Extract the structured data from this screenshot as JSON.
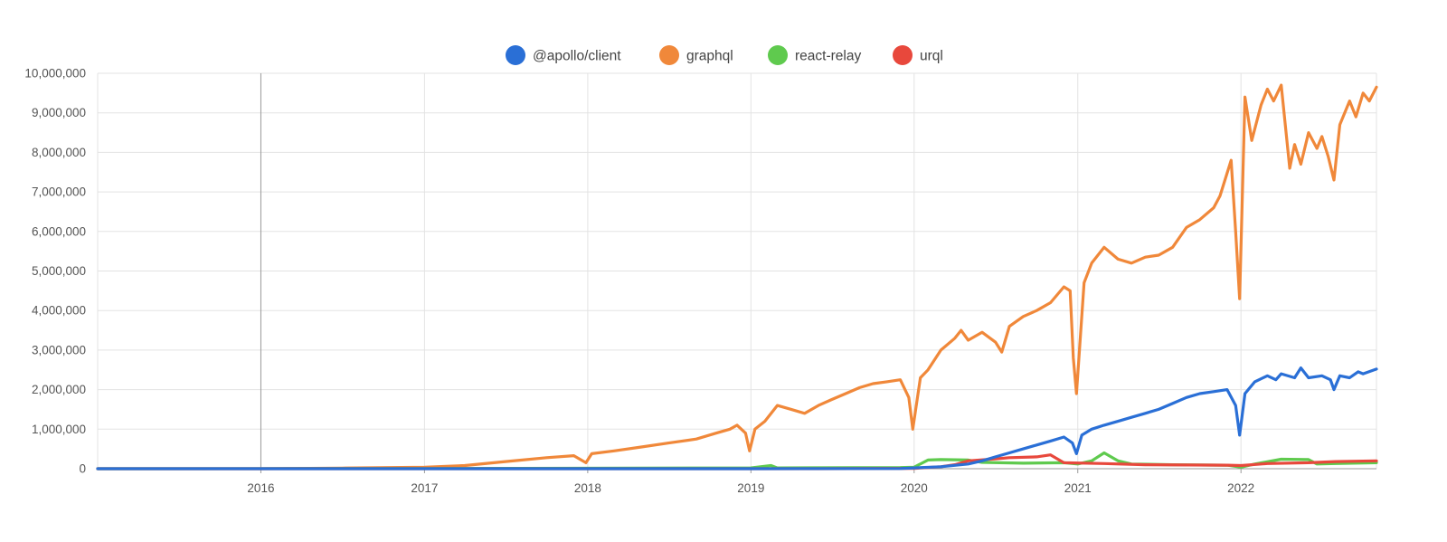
{
  "chart_data": {
    "type": "line",
    "title": "",
    "xlabel": "",
    "ylabel": "",
    "x_axis": {
      "type": "date",
      "range": [
        "2015-01-01",
        "2022-10-31"
      ],
      "tick_labels": [
        "2016",
        "2017",
        "2018",
        "2019",
        "2020",
        "2021",
        "2022"
      ]
    },
    "y_axis": {
      "range": [
        0,
        10000000
      ],
      "tick_labels": [
        "0",
        "1,000,000",
        "2,000,000",
        "3,000,000",
        "4,000,000",
        "5,000,000",
        "6,000,000",
        "7,000,000",
        "8,000,000",
        "9,000,000",
        "10,000,000"
      ]
    },
    "grid": true,
    "legend_position": "top-center",
    "series": [
      {
        "name": "@apollo/client",
        "color": "#2a6fd6",
        "points": [
          [
            "2015-01-01",
            0
          ],
          [
            "2017-01-01",
            0
          ],
          [
            "2019-01-01",
            0
          ],
          [
            "2019-12-01",
            5000
          ],
          [
            "2020-01-01",
            20000
          ],
          [
            "2020-03-01",
            50000
          ],
          [
            "2020-05-01",
            120000
          ],
          [
            "2020-06-01",
            200000
          ],
          [
            "2020-07-01",
            300000
          ],
          [
            "2020-08-01",
            400000
          ],
          [
            "2020-09-01",
            500000
          ],
          [
            "2020-10-01",
            600000
          ],
          [
            "2020-11-01",
            700000
          ],
          [
            "2020-12-01",
            800000
          ],
          [
            "2020-12-20",
            650000
          ],
          [
            "2020-12-29",
            380000
          ],
          [
            "2021-01-10",
            850000
          ],
          [
            "2021-02-01",
            1000000
          ],
          [
            "2021-03-01",
            1100000
          ],
          [
            "2021-04-01",
            1200000
          ],
          [
            "2021-05-01",
            1300000
          ],
          [
            "2021-06-01",
            1400000
          ],
          [
            "2021-07-01",
            1500000
          ],
          [
            "2021-08-01",
            1650000
          ],
          [
            "2021-09-01",
            1800000
          ],
          [
            "2021-10-01",
            1900000
          ],
          [
            "2021-11-01",
            1950000
          ],
          [
            "2021-12-01",
            2000000
          ],
          [
            "2021-12-20",
            1600000
          ],
          [
            "2021-12-29",
            850000
          ],
          [
            "2022-01-10",
            1900000
          ],
          [
            "2022-02-01",
            2200000
          ],
          [
            "2022-03-01",
            2350000
          ],
          [
            "2022-03-20",
            2250000
          ],
          [
            "2022-04-01",
            2400000
          ],
          [
            "2022-05-01",
            2300000
          ],
          [
            "2022-05-15",
            2550000
          ],
          [
            "2022-06-01",
            2300000
          ],
          [
            "2022-07-01",
            2350000
          ],
          [
            "2022-07-20",
            2250000
          ],
          [
            "2022-07-28",
            2000000
          ],
          [
            "2022-08-10",
            2350000
          ],
          [
            "2022-09-01",
            2300000
          ],
          [
            "2022-09-20",
            2450000
          ],
          [
            "2022-10-01",
            2400000
          ],
          [
            "2022-10-31",
            2520000
          ]
        ]
      },
      {
        "name": "graphql",
        "color": "#f0883a",
        "points": [
          [
            "2015-01-01",
            0
          ],
          [
            "2016-01-01",
            0
          ],
          [
            "2016-07-01",
            15000
          ],
          [
            "2017-01-01",
            40000
          ],
          [
            "2017-04-01",
            80000
          ],
          [
            "2017-07-01",
            180000
          ],
          [
            "2017-10-01",
            280000
          ],
          [
            "2017-12-01",
            330000
          ],
          [
            "2017-12-28",
            150000
          ],
          [
            "2018-01-10",
            380000
          ],
          [
            "2018-03-01",
            450000
          ],
          [
            "2018-05-01",
            550000
          ],
          [
            "2018-07-01",
            650000
          ],
          [
            "2018-09-01",
            750000
          ],
          [
            "2018-10-15",
            900000
          ],
          [
            "2018-11-15",
            1000000
          ],
          [
            "2018-12-01",
            1100000
          ],
          [
            "2018-12-20",
            900000
          ],
          [
            "2018-12-29",
            450000
          ],
          [
            "2019-01-10",
            1000000
          ],
          [
            "2019-02-01",
            1200000
          ],
          [
            "2019-03-01",
            1600000
          ],
          [
            "2019-04-01",
            1500000
          ],
          [
            "2019-05-01",
            1400000
          ],
          [
            "2019-06-01",
            1600000
          ],
          [
            "2019-07-01",
            1750000
          ],
          [
            "2019-08-01",
            1900000
          ],
          [
            "2019-09-01",
            2050000
          ],
          [
            "2019-10-01",
            2150000
          ],
          [
            "2019-11-01",
            2200000
          ],
          [
            "2019-12-01",
            2250000
          ],
          [
            "2019-12-20",
            1800000
          ],
          [
            "2019-12-29",
            1000000
          ],
          [
            "2020-01-15",
            2300000
          ],
          [
            "2020-02-01",
            2500000
          ],
          [
            "2020-03-01",
            3000000
          ],
          [
            "2020-04-01",
            3300000
          ],
          [
            "2020-04-15",
            3500000
          ],
          [
            "2020-05-01",
            3250000
          ],
          [
            "2020-06-01",
            3450000
          ],
          [
            "2020-07-01",
            3200000
          ],
          [
            "2020-07-15",
            2950000
          ],
          [
            "2020-08-01",
            3600000
          ],
          [
            "2020-09-01",
            3850000
          ],
          [
            "2020-10-01",
            4000000
          ],
          [
            "2020-11-01",
            4200000
          ],
          [
            "2020-12-01",
            4600000
          ],
          [
            "2020-12-15",
            4500000
          ],
          [
            "2020-12-22",
            2800000
          ],
          [
            "2020-12-29",
            1900000
          ],
          [
            "2021-01-15",
            4700000
          ],
          [
            "2021-02-01",
            5200000
          ],
          [
            "2021-03-01",
            5600000
          ],
          [
            "2021-04-01",
            5300000
          ],
          [
            "2021-05-01",
            5200000
          ],
          [
            "2021-06-01",
            5350000
          ],
          [
            "2021-07-01",
            5400000
          ],
          [
            "2021-08-01",
            5600000
          ],
          [
            "2021-09-01",
            6100000
          ],
          [
            "2021-10-01",
            6300000
          ],
          [
            "2021-11-01",
            6600000
          ],
          [
            "2021-11-15",
            6900000
          ],
          [
            "2021-12-10",
            7800000
          ],
          [
            "2021-12-20",
            6000000
          ],
          [
            "2021-12-29",
            4300000
          ],
          [
            "2022-01-10",
            9400000
          ],
          [
            "2022-01-25",
            8300000
          ],
          [
            "2022-02-15",
            9200000
          ],
          [
            "2022-03-01",
            9600000
          ],
          [
            "2022-03-15",
            9300000
          ],
          [
            "2022-04-01",
            9700000
          ],
          [
            "2022-04-20",
            7600000
          ],
          [
            "2022-05-01",
            8200000
          ],
          [
            "2022-05-15",
            7700000
          ],
          [
            "2022-06-01",
            8500000
          ],
          [
            "2022-06-20",
            8100000
          ],
          [
            "2022-07-01",
            8400000
          ],
          [
            "2022-07-15",
            7900000
          ],
          [
            "2022-07-28",
            7300000
          ],
          [
            "2022-08-10",
            8700000
          ],
          [
            "2022-09-01",
            9300000
          ],
          [
            "2022-09-15",
            8900000
          ],
          [
            "2022-10-01",
            9500000
          ],
          [
            "2022-10-15",
            9300000
          ],
          [
            "2022-10-31",
            9650000
          ]
        ]
      },
      {
        "name": "react-relay",
        "color": "#5fca4e",
        "points": [
          [
            "2015-01-01",
            0
          ],
          [
            "2017-01-01",
            5000
          ],
          [
            "2019-01-01",
            20000
          ],
          [
            "2019-02-15",
            80000
          ],
          [
            "2019-03-01",
            20000
          ],
          [
            "2019-12-01",
            30000
          ],
          [
            "2020-01-01",
            40000
          ],
          [
            "2020-02-01",
            220000
          ],
          [
            "2020-03-01",
            230000
          ],
          [
            "2020-05-01",
            220000
          ],
          [
            "2020-06-01",
            160000
          ],
          [
            "2020-09-01",
            140000
          ],
          [
            "2020-12-01",
            150000
          ],
          [
            "2021-01-01",
            120000
          ],
          [
            "2021-02-01",
            200000
          ],
          [
            "2021-03-01",
            400000
          ],
          [
            "2021-04-01",
            200000
          ],
          [
            "2021-05-01",
            120000
          ],
          [
            "2021-08-01",
            100000
          ],
          [
            "2021-12-01",
            90000
          ],
          [
            "2022-01-01",
            40000
          ],
          [
            "2022-02-01",
            120000
          ],
          [
            "2022-04-01",
            240000
          ],
          [
            "2022-06-01",
            230000
          ],
          [
            "2022-06-20",
            120000
          ],
          [
            "2022-08-01",
            130000
          ],
          [
            "2022-10-31",
            150000
          ]
        ]
      },
      {
        "name": "urql",
        "color": "#e8483c",
        "points": [
          [
            "2015-01-01",
            0
          ],
          [
            "2019-06-01",
            0
          ],
          [
            "2020-01-01",
            10000
          ],
          [
            "2020-03-01",
            50000
          ],
          [
            "2020-04-01",
            100000
          ],
          [
            "2020-05-01",
            200000
          ],
          [
            "2020-07-01",
            250000
          ],
          [
            "2020-08-01",
            280000
          ],
          [
            "2020-10-01",
            300000
          ],
          [
            "2020-11-01",
            350000
          ],
          [
            "2020-12-01",
            150000
          ],
          [
            "2021-03-01",
            130000
          ],
          [
            "2021-06-01",
            100000
          ],
          [
            "2021-12-01",
            90000
          ],
          [
            "2022-01-01",
            80000
          ],
          [
            "2022-03-01",
            130000
          ],
          [
            "2022-06-01",
            150000
          ],
          [
            "2022-08-01",
            180000
          ],
          [
            "2022-10-31",
            200000
          ]
        ]
      }
    ]
  }
}
